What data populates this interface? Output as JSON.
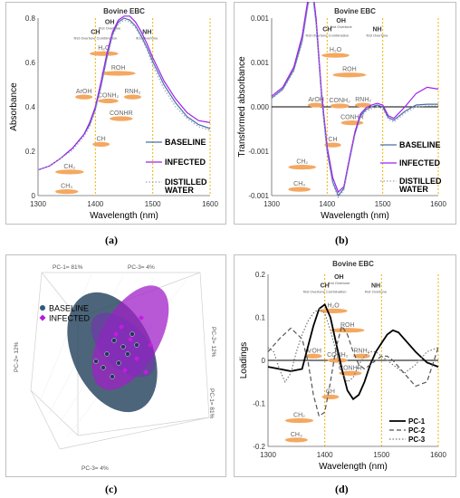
{
  "figure": {
    "panel_labels": [
      "(a)",
      "(b)",
      "(c)",
      "(d)"
    ]
  },
  "chart_data": [
    {
      "id": "a",
      "type": "line",
      "title": "Bovine EBC",
      "xlabel": "Wavelength (nm)",
      "ylabel": "Absorbance",
      "xlim": [
        1300,
        1600
      ],
      "ylim": [
        0,
        0.9
      ],
      "xticks": [
        "1300",
        "1400",
        "1500",
        "1600"
      ],
      "yticks": [
        "0",
        "0.2",
        "0.4",
        "0.6",
        "0.8"
      ],
      "vlines": [
        1400,
        1500,
        1600
      ],
      "band_labels": [
        {
          "text": "OH",
          "sub": "first Overtone",
          "x": 1425,
          "y": 0.87
        },
        {
          "text": "CH",
          "sub": "first Overtone Combination",
          "x": 1400,
          "y": 0.82
        },
        {
          "text": "NH",
          "sub": "first Overtone",
          "x": 1490,
          "y": 0.82
        }
      ],
      "assignments": [
        {
          "label": "H₂O",
          "x0": 1390,
          "x1": 1440,
          "y": 0.72
        },
        {
          "label": "ROH",
          "x0": 1410,
          "x1": 1470,
          "y": 0.62
        },
        {
          "label": "ArOH",
          "x0": 1365,
          "x1": 1395,
          "y": 0.5
        },
        {
          "label": "CONH₂",
          "x0": 1405,
          "x1": 1440,
          "y": 0.48
        },
        {
          "label": "RNH₂",
          "x0": 1450,
          "x1": 1480,
          "y": 0.5
        },
        {
          "label": "CONHR",
          "x0": 1425,
          "x1": 1465,
          "y": 0.39
        },
        {
          "label": "CH",
          "x0": 1395,
          "x1": 1425,
          "y": 0.26
        },
        {
          "label": "CH₂",
          "x0": 1330,
          "x1": 1380,
          "y": 0.12
        },
        {
          "label": "CH₃",
          "x0": 1330,
          "x1": 1370,
          "y": 0.02
        }
      ],
      "series": [
        {
          "name": "BASELINE",
          "color": "#4a6fa5",
          "style": "solid",
          "x": [
            1300,
            1320,
            1340,
            1360,
            1380,
            1390,
            1400,
            1410,
            1420,
            1430,
            1440,
            1450,
            1460,
            1470,
            1480,
            1490,
            1500,
            1520,
            1540,
            1560,
            1580,
            1600
          ],
          "y": [
            0.13,
            0.15,
            0.19,
            0.24,
            0.31,
            0.36,
            0.44,
            0.56,
            0.7,
            0.82,
            0.88,
            0.9,
            0.89,
            0.86,
            0.81,
            0.75,
            0.68,
            0.56,
            0.47,
            0.4,
            0.36,
            0.34
          ]
        },
        {
          "name": "INFECTED",
          "color": "#a020f0",
          "style": "solid",
          "x": [
            1300,
            1320,
            1340,
            1360,
            1380,
            1390,
            1400,
            1410,
            1420,
            1430,
            1440,
            1450,
            1460,
            1470,
            1480,
            1490,
            1500,
            1520,
            1540,
            1560,
            1580,
            1600
          ],
          "y": [
            0.13,
            0.15,
            0.19,
            0.24,
            0.31,
            0.37,
            0.45,
            0.58,
            0.72,
            0.83,
            0.89,
            0.91,
            0.91,
            0.88,
            0.83,
            0.77,
            0.7,
            0.58,
            0.49,
            0.42,
            0.38,
            0.37
          ]
        },
        {
          "name": "DISTILLED WATER",
          "color": "#9aa7b8",
          "style": "dotted",
          "x": [
            1300,
            1320,
            1340,
            1360,
            1380,
            1390,
            1400,
            1410,
            1420,
            1430,
            1440,
            1450,
            1460,
            1470,
            1480,
            1490,
            1500,
            1520,
            1540,
            1560,
            1580,
            1600
          ],
          "y": [
            0.13,
            0.15,
            0.19,
            0.23,
            0.3,
            0.35,
            0.43,
            0.55,
            0.69,
            0.81,
            0.87,
            0.89,
            0.88,
            0.85,
            0.8,
            0.74,
            0.66,
            0.54,
            0.45,
            0.39,
            0.35,
            0.33
          ]
        }
      ],
      "legend_position": "right"
    },
    {
      "id": "b",
      "type": "line",
      "title": "Bovine EBC",
      "xlabel": "Wavelength (nm)",
      "ylabel": "Transformed absorbance",
      "xlim": [
        1300,
        1600
      ],
      "ylim": [
        -0.001,
        0.001
      ],
      "xticks": [
        "1300",
        "1400",
        "1500",
        "1600"
      ],
      "yticks": [
        "-0.001",
        "-0.001",
        "0.000",
        "0.001",
        "0.001"
      ],
      "ytick_values": [
        -0.001,
        -0.0005,
        0.0,
        0.0005,
        0.001
      ],
      "vlines": [
        1400,
        1500,
        1600
      ],
      "zero_line": true,
      "band_labels": [
        {
          "text": "OH",
          "sub": "first Overtone",
          "x": 1425,
          "y": 0.00095
        },
        {
          "text": "CH",
          "sub": "first Overtone Combination",
          "x": 1400,
          "y": 0.00085
        },
        {
          "text": "NH",
          "sub": "first Overtone",
          "x": 1490,
          "y": 0.00085
        }
      ],
      "assignments": [
        {
          "label": "H₂O",
          "x0": 1390,
          "x1": 1440,
          "y": 0.00058
        },
        {
          "label": "ROH",
          "x0": 1410,
          "x1": 1470,
          "y": 0.00036
        },
        {
          "label": "ArOH",
          "x0": 1365,
          "x1": 1395,
          "y": 2e-05
        },
        {
          "label": "CONH₂",
          "x0": 1405,
          "x1": 1440,
          "y": 1e-05
        },
        {
          "label": "RNH₂",
          "x0": 1450,
          "x1": 1480,
          "y": 2e-05
        },
        {
          "label": "CONHR",
          "x0": 1425,
          "x1": 1465,
          "y": -0.00018
        },
        {
          "label": "CH",
          "x0": 1395,
          "x1": 1425,
          "y": -0.00043
        },
        {
          "label": "CH₂",
          "x0": 1330,
          "x1": 1380,
          "y": -0.00068
        },
        {
          "label": "CH₃",
          "x0": 1330,
          "x1": 1370,
          "y": -0.00093
        }
      ],
      "series": [
        {
          "name": "BASELINE",
          "color": "#4a6fa5",
          "style": "solid",
          "x": [
            1300,
            1320,
            1340,
            1355,
            1365,
            1370,
            1375,
            1380,
            1390,
            1400,
            1410,
            1420,
            1430,
            1440,
            1450,
            1460,
            1470,
            1480,
            1490,
            1500,
            1510,
            1520,
            1540,
            1560,
            1580,
            1600
          ],
          "y": [
            0.0001,
            0.0002,
            0.00042,
            0.00075,
            0.00115,
            0.00128,
            0.00122,
            0.00095,
            0.0001,
            -0.0005,
            -0.00085,
            -0.001,
            -0.00092,
            -0.0006,
            -0.0003,
            -0.0001,
            -3e-05,
            0.0,
            2e-05,
            0.0,
            -0.00012,
            -0.00015,
            -5e-05,
            2e-05,
            3e-05,
            3e-05
          ]
        },
        {
          "name": "INFECTED",
          "color": "#a020f0",
          "style": "solid",
          "x": [
            1300,
            1320,
            1340,
            1355,
            1365,
            1370,
            1375,
            1380,
            1390,
            1400,
            1410,
            1420,
            1430,
            1440,
            1450,
            1460,
            1470,
            1480,
            1490,
            1500,
            1510,
            1520,
            1540,
            1560,
            1580,
            1600
          ],
          "y": [
            0.00012,
            0.00022,
            0.00045,
            0.0008,
            0.0012,
            0.00133,
            0.00127,
            0.001,
            0.00015,
            -0.00045,
            -0.0008,
            -0.00096,
            -0.0009,
            -0.00058,
            -0.00028,
            -8e-05,
            -1e-05,
            2e-05,
            4e-05,
            2e-05,
            -0.0001,
            -0.00013,
            0.0,
            0.00015,
            0.00022,
            0.0002
          ]
        },
        {
          "name": "DISTILLED WATER",
          "color": "#9aa7b8",
          "style": "dotted",
          "x": [
            1300,
            1320,
            1340,
            1355,
            1365,
            1370,
            1375,
            1380,
            1390,
            1400,
            1410,
            1420,
            1430,
            1440,
            1450,
            1460,
            1470,
            1480,
            1490,
            1500,
            1510,
            1520,
            1540,
            1560,
            1580,
            1600
          ],
          "y": [
            9e-05,
            0.00019,
            0.0004,
            0.00072,
            0.00112,
            0.00125,
            0.00119,
            0.00092,
            8e-05,
            -0.00052,
            -0.00087,
            -0.00102,
            -0.00094,
            -0.00062,
            -0.00032,
            -0.00012,
            -5e-05,
            -2e-05,
            0.0,
            -2e-05,
            -0.00014,
            -0.00017,
            -7e-05,
            0.0,
            1e-05,
            1e-05
          ]
        }
      ],
      "legend_position": "right"
    },
    {
      "id": "c",
      "type": "scatter",
      "axis_labels": [
        "PC-1= 81%",
        "PC-3= 4%",
        "PC-2= 12%",
        "PC-2= 12%",
        "PC-1= 81%",
        "PC-3= 4%"
      ],
      "series": [
        {
          "name": "BASELINE",
          "color": "#2f5a7a",
          "marker": "circle"
        },
        {
          "name": "INFECTED",
          "color": "#b21dd6",
          "marker": "diamond"
        }
      ],
      "legend_position": "top-left"
    },
    {
      "id": "d",
      "type": "line",
      "title": "Bovine EBC",
      "xlabel": "Wavelength (nm)",
      "ylabel": "Loadings",
      "xlim": [
        1300,
        1600
      ],
      "ylim": [
        -0.2,
        0.2
      ],
      "xticks": [
        "1300",
        "1400",
        "1500",
        "1600"
      ],
      "yticks": [
        "-0.2",
        "-0.1",
        "0",
        "0.1",
        "0.2"
      ],
      "vlines": [
        1400,
        1500,
        1600
      ],
      "zero_line": true,
      "band_labels": [
        {
          "text": "OH",
          "sub": "first Overtone",
          "x": 1425,
          "y": 0.19
        },
        {
          "text": "CH",
          "sub": "first Overtone Combination",
          "x": 1400,
          "y": 0.17
        },
        {
          "text": "NH",
          "sub": "first Overtone",
          "x": 1490,
          "y": 0.17
        }
      ],
      "assignments": [
        {
          "label": "H₂O",
          "x0": 1390,
          "x1": 1440,
          "y": 0.115
        },
        {
          "label": "ROH",
          "x0": 1410,
          "x1": 1470,
          "y": 0.07
        },
        {
          "label": "ArOH",
          "x0": 1365,
          "x1": 1395,
          "y": 0.01
        },
        {
          "label": "CONH₂",
          "x0": 1405,
          "x1": 1440,
          "y": 0.0
        },
        {
          "label": "RNH₂",
          "x0": 1450,
          "x1": 1480,
          "y": 0.01
        },
        {
          "label": "CONHR",
          "x0": 1425,
          "x1": 1465,
          "y": -0.03
        },
        {
          "label": "CH",
          "x0": 1395,
          "x1": 1425,
          "y": -0.085
        },
        {
          "label": "CH₂",
          "x0": 1330,
          "x1": 1380,
          "y": -0.14
        },
        {
          "label": "CH₃",
          "x0": 1330,
          "x1": 1370,
          "y": -0.185
        }
      ],
      "series": [
        {
          "name": "PC-1",
          "color": "#000000",
          "style": "solid",
          "x": [
            1300,
            1320,
            1340,
            1360,
            1380,
            1390,
            1400,
            1410,
            1420,
            1430,
            1440,
            1450,
            1460,
            1470,
            1480,
            1490,
            1500,
            1510,
            1520,
            1530,
            1540,
            1560,
            1580,
            1600
          ],
          "y": [
            -0.015,
            -0.02,
            -0.025,
            -0.02,
            0.08,
            0.12,
            0.13,
            0.1,
            0.04,
            -0.02,
            -0.07,
            -0.09,
            -0.08,
            -0.05,
            -0.01,
            0.02,
            0.04,
            0.06,
            0.07,
            0.065,
            0.05,
            0.02,
            -0.005,
            -0.015
          ]
        },
        {
          "name": "PC-2",
          "color": "#555555",
          "style": "dashed",
          "x": [
            1300,
            1320,
            1340,
            1360,
            1370,
            1380,
            1390,
            1400,
            1410,
            1420,
            1430,
            1440,
            1450,
            1460,
            1470,
            1480,
            1490,
            1500,
            1510,
            1520,
            1540,
            1560,
            1580,
            1600
          ],
          "y": [
            0.02,
            0.05,
            0.075,
            0.05,
            0.0,
            -0.08,
            -0.13,
            -0.12,
            -0.05,
            0.03,
            0.08,
            0.06,
            0.02,
            -0.01,
            -0.02,
            -0.01,
            0.0,
            0.01,
            0.01,
            0.0,
            -0.03,
            -0.06,
            -0.05,
            0.03
          ]
        },
        {
          "name": "PC-3",
          "color": "#777777",
          "style": "dotted",
          "x": [
            1300,
            1310,
            1320,
            1330,
            1340,
            1350,
            1360,
            1370,
            1380,
            1390,
            1400,
            1410,
            1420,
            1430,
            1440,
            1450,
            1460,
            1470,
            1480,
            1490,
            1500,
            1520,
            1540,
            1560,
            1580,
            1600
          ],
          "y": [
            0.03,
            0.02,
            -0.02,
            -0.05,
            -0.03,
            0.02,
            0.06,
            0.09,
            0.11,
            0.12,
            0.11,
            0.07,
            0.02,
            -0.03,
            -0.05,
            -0.04,
            -0.01,
            0.01,
            0.02,
            0.02,
            0.01,
            -0.01,
            -0.03,
            -0.01,
            0.02,
            0.03
          ]
        }
      ],
      "legend_position": "bottom-right"
    }
  ]
}
